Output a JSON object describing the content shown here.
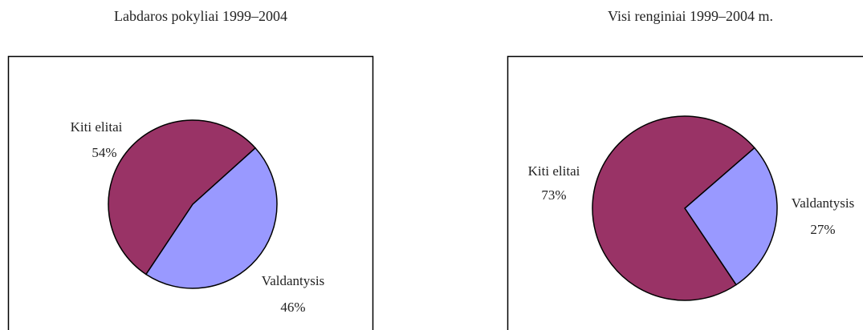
{
  "chart_data": [
    {
      "type": "pie",
      "title": "Labdaros pokyliai 1999–2004",
      "categories": [
        "Valdantysis",
        "Kiti elitai"
      ],
      "values": [
        46,
        54
      ],
      "value_labels": [
        "46%",
        "54%"
      ],
      "colors": [
        "#9999ff",
        "#993366"
      ]
    },
    {
      "type": "pie",
      "title": "Visi renginiai 1999–2004 m.",
      "categories": [
        "Valdantysis",
        "Kiti elitai"
      ],
      "values": [
        27,
        73
      ],
      "value_labels": [
        "27%",
        "73%"
      ],
      "colors": [
        "#9999ff",
        "#993366"
      ]
    }
  ]
}
